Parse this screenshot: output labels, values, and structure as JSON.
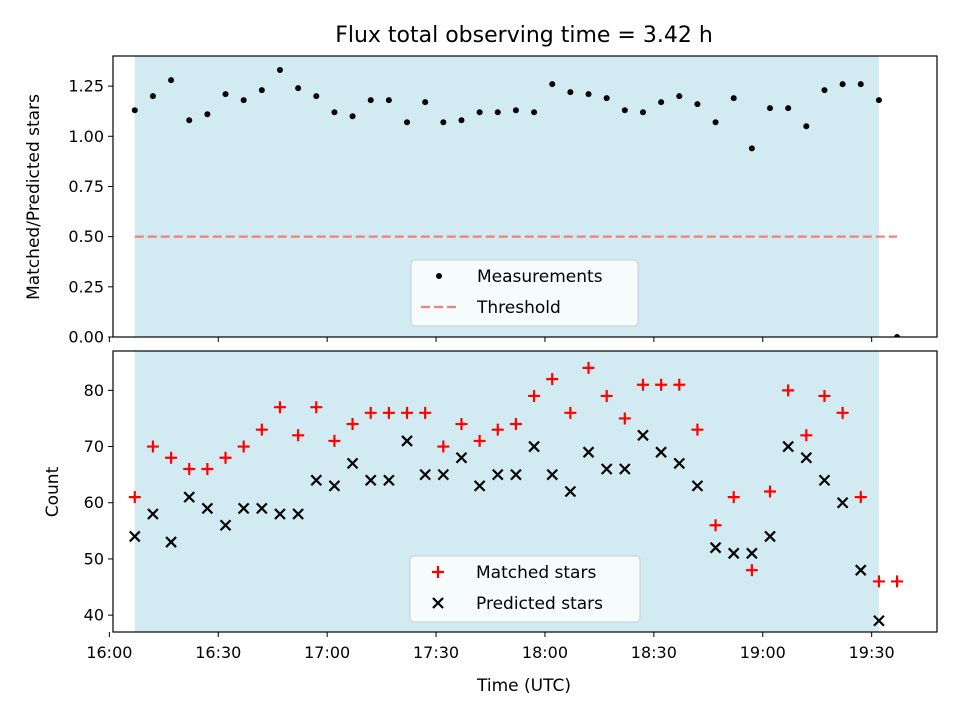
{
  "figure": {
    "title": "Flux total observing time = 3.42 h",
    "xlabel": "Time (UTC)"
  },
  "colors": {
    "shade": "#add8e6",
    "measurement": "#000000",
    "threshold": "#f08080",
    "matched": "#ff0000",
    "predicted": "#000000"
  },
  "chart_data": [
    {
      "type": "scatter",
      "ylabel": "Matched/Predicted stars",
      "x_axis": {
        "type": "time",
        "min": "16:01",
        "max": "19:48",
        "ticks": [
          "16:00",
          "16:30",
          "17:00",
          "17:30",
          "18:00",
          "18:30",
          "19:00",
          "19:30"
        ]
      },
      "ylim": [
        0,
        1.4
      ],
      "y_ticks": [
        "0.00",
        "0.25",
        "0.50",
        "0.75",
        "1.00",
        "1.25"
      ],
      "shaded_span": {
        "start": "16:07",
        "end": "19:32"
      },
      "grid": false,
      "legend_position": "lower center",
      "series": [
        {
          "name": "Measurements",
          "marker": "dot",
          "points": [
            [
              "16:07",
              1.13
            ],
            [
              "16:12",
              1.2
            ],
            [
              "16:17",
              1.28
            ],
            [
              "16:22",
              1.08
            ],
            [
              "16:27",
              1.11
            ],
            [
              "16:32",
              1.21
            ],
            [
              "16:37",
              1.18
            ],
            [
              "16:42",
              1.23
            ],
            [
              "16:47",
              1.33
            ],
            [
              "16:52",
              1.24
            ],
            [
              "16:57",
              1.2
            ],
            [
              "17:02",
              1.12
            ],
            [
              "17:07",
              1.1
            ],
            [
              "17:12",
              1.18
            ],
            [
              "17:17",
              1.18
            ],
            [
              "17:22",
              1.07
            ],
            [
              "17:27",
              1.17
            ],
            [
              "17:32",
              1.07
            ],
            [
              "17:37",
              1.08
            ],
            [
              "17:42",
              1.12
            ],
            [
              "17:47",
              1.12
            ],
            [
              "17:52",
              1.13
            ],
            [
              "17:57",
              1.12
            ],
            [
              "18:02",
              1.26
            ],
            [
              "18:07",
              1.22
            ],
            [
              "18:12",
              1.21
            ],
            [
              "18:17",
              1.19
            ],
            [
              "18:22",
              1.13
            ],
            [
              "18:27",
              1.12
            ],
            [
              "18:32",
              1.17
            ],
            [
              "18:37",
              1.2
            ],
            [
              "18:42",
              1.16
            ],
            [
              "18:47",
              1.07
            ],
            [
              "18:52",
              1.19
            ],
            [
              "18:57",
              0.94
            ],
            [
              "19:02",
              1.14
            ],
            [
              "19:07",
              1.14
            ],
            [
              "19:12",
              1.05
            ],
            [
              "19:17",
              1.23
            ],
            [
              "19:22",
              1.26
            ],
            [
              "19:27",
              1.26
            ],
            [
              "19:32",
              1.18
            ],
            [
              "19:37",
              0.0
            ]
          ]
        },
        {
          "name": "Threshold",
          "line_style": "dashed",
          "value": 0.5,
          "x_range": [
            "16:07",
            "19:37"
          ]
        }
      ]
    },
    {
      "type": "scatter",
      "ylabel": "Count",
      "xlabel": "Time (UTC)",
      "x_axis": {
        "type": "time",
        "min": "16:01",
        "max": "19:48",
        "ticks": [
          "16:00",
          "16:30",
          "17:00",
          "17:30",
          "18:00",
          "18:30",
          "19:00",
          "19:30"
        ]
      },
      "ylim": [
        37,
        87
      ],
      "y_ticks": [
        "40",
        "50",
        "60",
        "70",
        "80"
      ],
      "shaded_span": {
        "start": "16:07",
        "end": "19:32"
      },
      "grid": false,
      "legend_position": "lower center",
      "times": [
        "16:07",
        "16:12",
        "16:17",
        "16:22",
        "16:27",
        "16:32",
        "16:37",
        "16:42",
        "16:47",
        "16:52",
        "16:57",
        "17:02",
        "17:07",
        "17:12",
        "17:17",
        "17:22",
        "17:27",
        "17:32",
        "17:37",
        "17:42",
        "17:47",
        "17:52",
        "17:57",
        "18:02",
        "18:07",
        "18:12",
        "18:17",
        "18:22",
        "18:27",
        "18:32",
        "18:37",
        "18:42",
        "18:47",
        "18:52",
        "18:57",
        "19:02",
        "19:07",
        "19:12",
        "19:17",
        "19:22",
        "19:27",
        "19:32",
        "19:37"
      ],
      "series": [
        {
          "name": "Matched stars",
          "marker": "plus",
          "values": [
            61,
            70,
            68,
            66,
            66,
            68,
            70,
            73,
            77,
            72,
            77,
            71,
            74,
            76,
            76,
            76,
            76,
            70,
            74,
            71,
            73,
            74,
            79,
            82,
            76,
            84,
            79,
            75,
            81,
            81,
            81,
            73,
            56,
            61,
            48,
            62,
            80,
            72,
            79,
            76,
            61,
            46,
            46
          ]
        },
        {
          "name": "Predicted stars",
          "marker": "x",
          "values": [
            54,
            58,
            53,
            61,
            59,
            56,
            59,
            59,
            58,
            58,
            64,
            63,
            67,
            64,
            64,
            71,
            65,
            65,
            68,
            63,
            65,
            65,
            70,
            65,
            62,
            69,
            66,
            66,
            72,
            69,
            67,
            63,
            52,
            51,
            51,
            54,
            70,
            68,
            64,
            60,
            48,
            39,
            null
          ]
        }
      ]
    }
  ]
}
